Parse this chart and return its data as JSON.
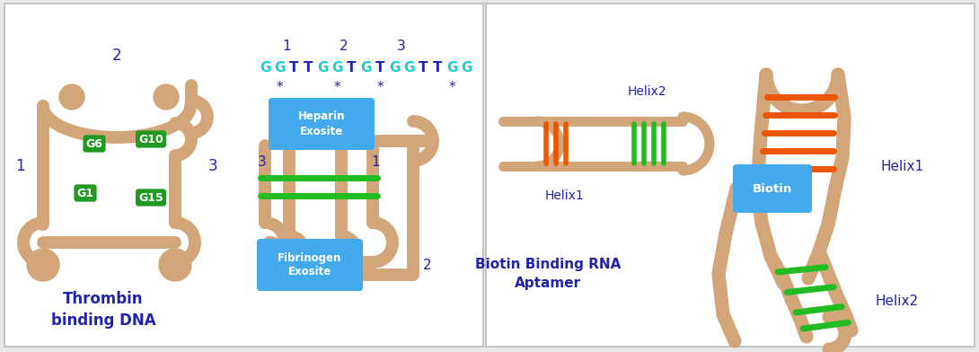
{
  "bg_color": "#e8e8e8",
  "strand_color": "#D2A679",
  "strand_lw": 10,
  "green_color": "#22BB22",
  "orange_color": "#EE5500",
  "blue_label_color": "#2222AA",
  "g_quad_color": "#229922",
  "g_quad_text_color": "#ffffff",
  "blue_box_color": "#44AAEE",
  "seq_cyan": "#22CCCC",
  "seq_blue": "#2222AA",
  "title1": "Thrombin\nbinding DNA",
  "title2": "Biotin Binding RNA\nAptamer",
  "label_heparin": "Heparin\nExosite",
  "label_fibrinogen": "Fibrinogen\nExosite",
  "label_biotin": "Biotin",
  "label_helix1_small": "Helix1",
  "label_helix2_small": "Helix2",
  "label_helix1_large": "Helix1",
  "label_helix2_large": "Helix2",
  "sequence_text": "GGTTGGTGTGGTTGG",
  "sequence_colors": [
    "#22CCCC",
    "#22CCCC",
    "#2222AA",
    "#2222AA",
    "#22CCCC",
    "#22CCCC",
    "#2222AA",
    "#22CCCC",
    "#2222AA",
    "#22CCCC",
    "#22CCCC",
    "#2222AA",
    "#2222AA",
    "#22CCCC",
    "#22CCCC"
  ]
}
